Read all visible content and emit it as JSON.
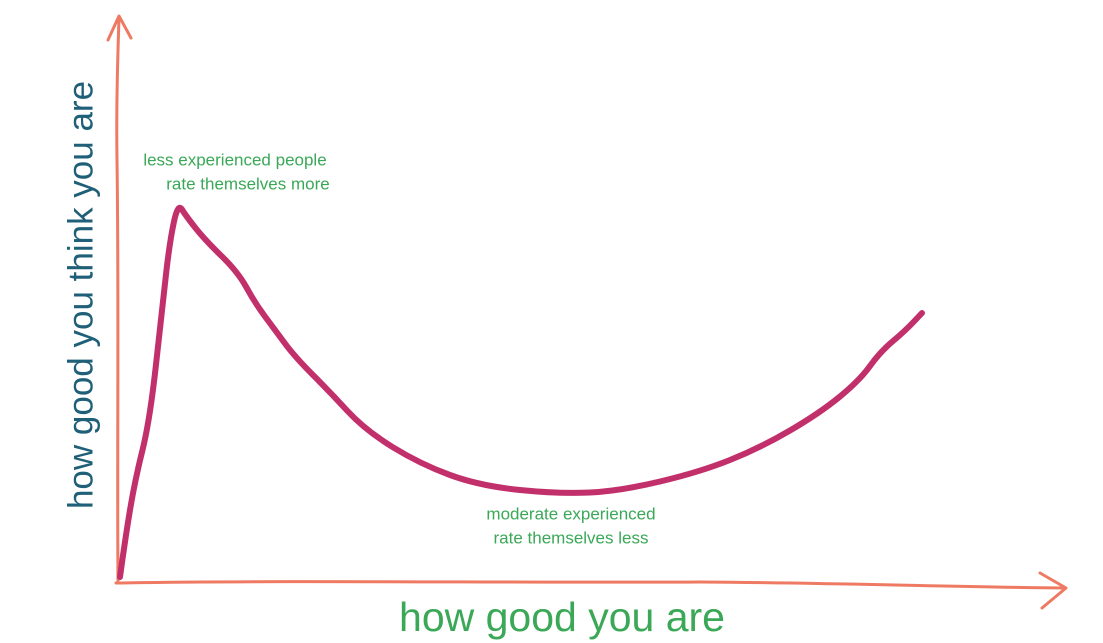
{
  "y_axis_label": "how good you think you are",
  "x_axis_label": "how good you are",
  "annotations": [
    {
      "lines": [
        "less experienced people",
        "rate themselves more"
      ]
    },
    {
      "lines": [
        "moderate experienced",
        "rate themselves less"
      ]
    }
  ]
}
